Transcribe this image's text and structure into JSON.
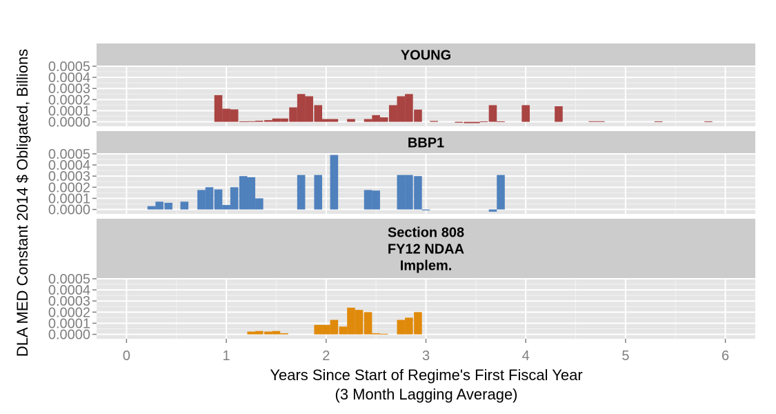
{
  "chart_data": {
    "type": "bar",
    "xlabel_line1": "Years Since Start of Regime's First Fiscal Year",
    "xlabel_line2": "(3 Month Lagging Average)",
    "ylabel": "DLA MED Constant 2014 $ Obligated, Billions",
    "xlim": [
      -0.3,
      6.3
    ],
    "ylim": [
      -4e-05,
      0.0005
    ],
    "x_ticks": [
      0,
      1,
      2,
      3,
      4,
      5,
      6
    ],
    "x_tick_labels": [
      "0",
      "1",
      "2",
      "3",
      "4",
      "5",
      "6"
    ],
    "y_ticks": [
      0,
      0.0001,
      0.0002,
      0.0003,
      0.0004,
      0.0005
    ],
    "y_tick_labels": [
      "0.0000",
      "0.0001",
      "0.0002",
      "0.0003",
      "0.0004",
      "0.0005"
    ],
    "bar_width": 0.08,
    "grid": true,
    "panels": [
      {
        "name": "YOUNG",
        "strip_lines": [
          "YOUNG"
        ],
        "color": "#A94442",
        "bars": [
          {
            "x": 0.92,
            "y": 0.00024
          },
          {
            "x": 1.0,
            "y": 0.000118
          },
          {
            "x": 1.08,
            "y": 0.000112
          },
          {
            "x": 1.17,
            "y": 4e-06
          },
          {
            "x": 1.25,
            "y": 5e-06
          },
          {
            "x": 1.33,
            "y": 1e-05
          },
          {
            "x": 1.42,
            "y": 1.5e-05
          },
          {
            "x": 1.5,
            "y": 3e-05
          },
          {
            "x": 1.58,
            "y": 3e-05
          },
          {
            "x": 1.67,
            "y": 0.00013
          },
          {
            "x": 1.75,
            "y": 0.00025
          },
          {
            "x": 1.83,
            "y": 0.00023
          },
          {
            "x": 1.92,
            "y": 0.00015
          },
          {
            "x": 2.0,
            "y": 2.5e-05
          },
          {
            "x": 2.08,
            "y": 2.5e-05
          },
          {
            "x": 2.25,
            "y": 2.5e-05
          },
          {
            "x": 2.42,
            "y": 2.5e-05
          },
          {
            "x": 2.5,
            "y": 6e-05
          },
          {
            "x": 2.58,
            "y": 4e-05
          },
          {
            "x": 2.67,
            "y": 0.00015
          },
          {
            "x": 2.75,
            "y": 0.00023
          },
          {
            "x": 2.83,
            "y": 0.00025
          },
          {
            "x": 2.92,
            "y": 0.00011
          },
          {
            "x": 3.08,
            "y": 8e-06
          },
          {
            "x": 3.33,
            "y": -8e-06
          },
          {
            "x": 3.42,
            "y": -1.2e-05
          },
          {
            "x": 3.5,
            "y": -1.2e-05
          },
          {
            "x": 3.58,
            "y": 4e-06
          },
          {
            "x": 3.67,
            "y": 0.00015
          },
          {
            "x": 3.75,
            "y": 4e-06
          },
          {
            "x": 4.0,
            "y": 0.00015
          },
          {
            "x": 4.33,
            "y": 0.00014
          },
          {
            "x": 4.67,
            "y": 5e-06
          },
          {
            "x": 4.75,
            "y": 5e-06
          },
          {
            "x": 5.33,
            "y": 4e-06
          },
          {
            "x": 5.83,
            "y": 4e-06
          }
        ]
      },
      {
        "name": "BBP1",
        "strip_lines": [
          "BBP1"
        ],
        "color": "#4F81BD",
        "bars": [
          {
            "x": 0.25,
            "y": 3e-05
          },
          {
            "x": 0.33,
            "y": 7e-05
          },
          {
            "x": 0.42,
            "y": 6e-05
          },
          {
            "x": 0.58,
            "y": 7e-05
          },
          {
            "x": 0.75,
            "y": 0.000175
          },
          {
            "x": 0.83,
            "y": 0.0002
          },
          {
            "x": 0.92,
            "y": 0.00018
          },
          {
            "x": 1.0,
            "y": 4e-05
          },
          {
            "x": 1.08,
            "y": 0.0002
          },
          {
            "x": 1.17,
            "y": 0.0003
          },
          {
            "x": 1.25,
            "y": 0.00029
          },
          {
            "x": 1.33,
            "y": 0.0001
          },
          {
            "x": 1.75,
            "y": 0.00031
          },
          {
            "x": 1.92,
            "y": 0.00031
          },
          {
            "x": 2.08,
            "y": 0.00049
          },
          {
            "x": 2.42,
            "y": 0.000175
          },
          {
            "x": 2.5,
            "y": 0.00017
          },
          {
            "x": 2.75,
            "y": 0.00031
          },
          {
            "x": 2.83,
            "y": 0.00031
          },
          {
            "x": 2.92,
            "y": 0.0003
          },
          {
            "x": 3.0,
            "y": -8e-06
          },
          {
            "x": 3.67,
            "y": -2e-05
          },
          {
            "x": 3.75,
            "y": 0.00031
          }
        ]
      },
      {
        "name": "Section 808 FY12 NDAA Implem.",
        "strip_lines": [
          "Section 808",
          "FY12 NDAA",
          "Implem."
        ],
        "color": "#E08A0B",
        "bars": [
          {
            "x": 1.25,
            "y": 2.5e-05
          },
          {
            "x": 1.33,
            "y": 3e-05
          },
          {
            "x": 1.42,
            "y": 2.5e-05
          },
          {
            "x": 1.5,
            "y": 3e-05
          },
          {
            "x": 1.58,
            "y": 1e-05
          },
          {
            "x": 1.92,
            "y": 8.5e-05
          },
          {
            "x": 2.0,
            "y": 8.5e-05
          },
          {
            "x": 2.08,
            "y": 0.00013
          },
          {
            "x": 2.17,
            "y": 7e-05
          },
          {
            "x": 2.25,
            "y": 0.00024
          },
          {
            "x": 2.33,
            "y": 0.00022
          },
          {
            "x": 2.42,
            "y": 0.0002
          },
          {
            "x": 2.5,
            "y": 1e-05
          },
          {
            "x": 2.58,
            "y": 5e-06
          },
          {
            "x": 2.75,
            "y": 0.00013
          },
          {
            "x": 2.83,
            "y": 0.00015
          },
          {
            "x": 2.92,
            "y": 0.0002
          }
        ]
      }
    ]
  }
}
